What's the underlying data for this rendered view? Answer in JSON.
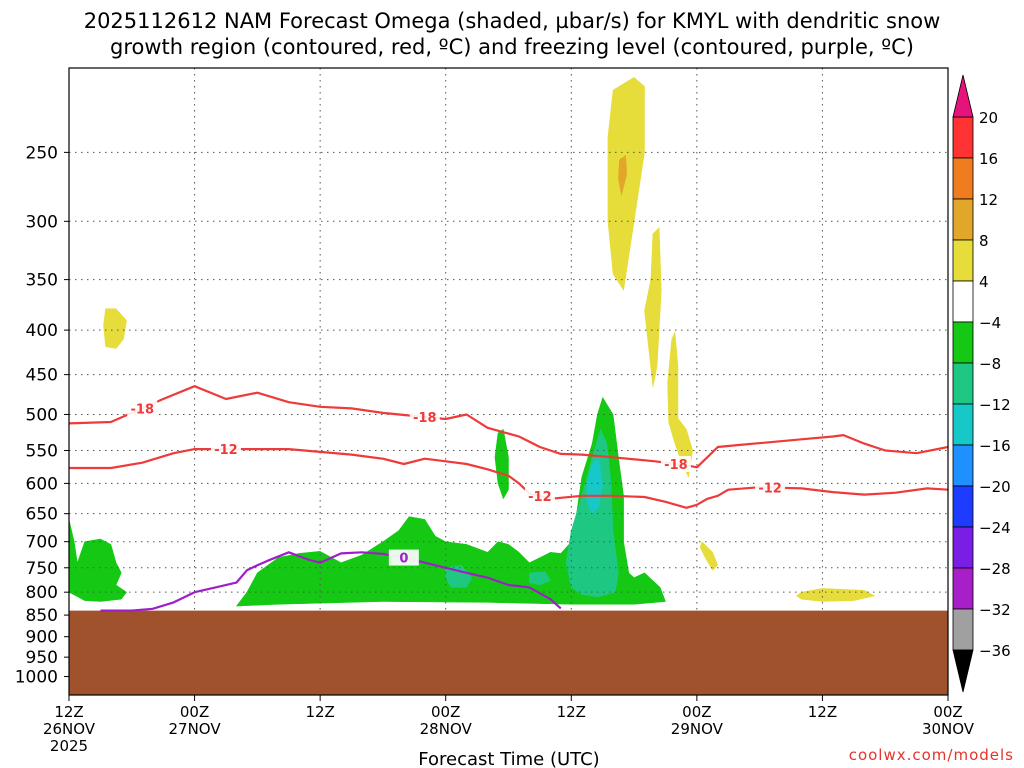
{
  "title_line1": "2025112612 NAM Forecast Omega (shaded, µbar/s) for KMYL with dendritic snow",
  "title_line2": "growth region (contoured, red, ºC) and freezing level (contoured, purple, ºC)",
  "credit": "coolwx.com/models",
  "colors": {
    "ground": "#a0522d",
    "red_contour": "#ef3a3a",
    "purple_contour": "#9e1fc8",
    "grid": "#888888"
  },
  "chart_data": {
    "type": "heatmap",
    "title": "2025112612 NAM Forecast Omega (shaded, µbar/s) for KMYL with dendritic snow growth region (contoured, red, ºC) and freezing level (contoured, purple, ºC)",
    "xlabel": "Forecast Time (UTC)",
    "ylabel": "",
    "x_ticks": [
      {
        "hour": 0,
        "line1": "12Z",
        "line2": "26NOV",
        "line3": "2025"
      },
      {
        "hour": 12,
        "line1": "00Z",
        "line2": "27NOV",
        "line3": ""
      },
      {
        "hour": 24,
        "line1": "12Z",
        "line2": "",
        "line3": ""
      },
      {
        "hour": 36,
        "line1": "00Z",
        "line2": "28NOV",
        "line3": ""
      },
      {
        "hour": 48,
        "line1": "12Z",
        "line2": "",
        "line3": ""
      },
      {
        "hour": 60,
        "line1": "00Z",
        "line2": "29NOV",
        "line3": ""
      },
      {
        "hour": 72,
        "line1": "12Z",
        "line2": "",
        "line3": ""
      },
      {
        "hour": 84,
        "line1": "00Z",
        "line2": "30NOV",
        "line3": ""
      }
    ],
    "y_axis": "pressure (hPa), log scale, inverted",
    "y_ticks": [
      250,
      300,
      350,
      400,
      450,
      500,
      550,
      600,
      650,
      700,
      750,
      800,
      850,
      900,
      950,
      1000
    ],
    "ylim": [
      200,
      1050
    ],
    "grid": true,
    "ground_top_hpa": 840,
    "colorbar": {
      "levels": [
        20,
        16,
        12,
        8,
        4,
        -4,
        -8,
        -12,
        -16,
        -20,
        -24,
        -28,
        -32,
        -36
      ],
      "colors": [
        "#ff3333",
        "#f07c20",
        "#e2a72a",
        "#e6dc3a",
        "#ffffff",
        "#14c814",
        "#1ec882",
        "#16c8c8",
        "#1e90ff",
        "#1e3cff",
        "#7a1ee6",
        "#a81ec8",
        "#a0a0a0"
      ],
      "top_arrow_color": "#e6147a",
      "bottom_arrow_color": "#000000"
    },
    "red_contours": [
      {
        "label": "-18",
        "points": [
          [
            0,
            512
          ],
          [
            4,
            510
          ],
          [
            6,
            498
          ],
          [
            9,
            480
          ],
          [
            12,
            464
          ],
          [
            15,
            480
          ],
          [
            18,
            472
          ],
          [
            21,
            484
          ],
          [
            24,
            490
          ],
          [
            27,
            492
          ],
          [
            30,
            498
          ],
          [
            33,
            502
          ],
          [
            36,
            506
          ],
          [
            38,
            500
          ],
          [
            40,
            518
          ],
          [
            43,
            530
          ],
          [
            45,
            545
          ],
          [
            47,
            555
          ],
          [
            49,
            556
          ],
          [
            52,
            560
          ],
          [
            56,
            566
          ],
          [
            58,
            570
          ],
          [
            59,
            572
          ],
          [
            60,
            575
          ],
          [
            61,
            560
          ],
          [
            62,
            545
          ],
          [
            64,
            542
          ],
          [
            67,
            538
          ],
          [
            70,
            534
          ],
          [
            73,
            530
          ],
          [
            74,
            528
          ],
          [
            76,
            540
          ],
          [
            78,
            550
          ],
          [
            81,
            554
          ],
          [
            84,
            545
          ]
        ]
      },
      {
        "label": "-12",
        "points": [
          [
            0,
            576
          ],
          [
            4,
            576
          ],
          [
            7,
            568
          ],
          [
            10,
            554
          ],
          [
            12,
            548
          ],
          [
            15,
            548
          ],
          [
            18,
            548
          ],
          [
            21,
            548
          ],
          [
            24,
            552
          ],
          [
            27,
            556
          ],
          [
            30,
            562
          ],
          [
            32,
            570
          ],
          [
            34,
            562
          ],
          [
            36,
            566
          ],
          [
            38,
            570
          ],
          [
            40,
            578
          ],
          [
            42,
            588
          ],
          [
            43,
            600
          ],
          [
            44,
            616
          ],
          [
            46,
            625
          ],
          [
            49,
            620
          ],
          [
            52,
            620
          ],
          [
            55,
            622
          ],
          [
            57,
            630
          ],
          [
            59,
            640
          ],
          [
            60,
            635
          ],
          [
            61,
            625
          ],
          [
            62,
            620
          ],
          [
            63,
            610
          ],
          [
            66,
            606
          ],
          [
            68,
            607
          ],
          [
            70,
            608
          ],
          [
            73,
            614
          ],
          [
            76,
            618
          ],
          [
            79,
            615
          ],
          [
            82,
            608
          ],
          [
            84,
            610
          ]
        ]
      }
    ],
    "purple_contour": {
      "label": "0",
      "points": [
        [
          3,
          840
        ],
        [
          6,
          840
        ],
        [
          8,
          836
        ],
        [
          10,
          822
        ],
        [
          12,
          800
        ],
        [
          14,
          790
        ],
        [
          16,
          780
        ],
        [
          17,
          755
        ],
        [
          18,
          745
        ],
        [
          19,
          736
        ],
        [
          21,
          720
        ],
        [
          23,
          735
        ],
        [
          24,
          740
        ],
        [
          26,
          722
        ],
        [
          28,
          720
        ],
        [
          30,
          723
        ],
        [
          32,
          730
        ],
        [
          34,
          740
        ],
        [
          36,
          750
        ],
        [
          38,
          760
        ],
        [
          40,
          770
        ],
        [
          42,
          785
        ],
        [
          44,
          790
        ],
        [
          46,
          815
        ],
        [
          47,
          835
        ]
      ]
    },
    "omega_regions": [
      {
        "color": "#e6dc3a",
        "label": "4 to 8",
        "points": [
          [
            3.5,
            378
          ],
          [
            4.5,
            378
          ],
          [
            5.5,
            390
          ],
          [
            5.2,
            410
          ],
          [
            4.5,
            420
          ],
          [
            3.5,
            418
          ],
          [
            3.3,
            395
          ]
        ]
      },
      {
        "color": "#e6dc3a",
        "label": "4 to 8",
        "points": [
          [
            52,
            212
          ],
          [
            54,
            205
          ],
          [
            55,
            210
          ],
          [
            55,
            250
          ],
          [
            54,
            300
          ],
          [
            53,
            360
          ],
          [
            52,
            345
          ],
          [
            51.5,
            300
          ],
          [
            51.5,
            240
          ]
        ]
      },
      {
        "color": "#e2a72a",
        "label": "8 to 12",
        "points": [
          [
            52.6,
            255
          ],
          [
            53.2,
            252
          ],
          [
            53.3,
            265
          ],
          [
            52.8,
            280
          ],
          [
            52.5,
            268
          ]
        ]
      },
      {
        "color": "#e6dc3a",
        "label": "4 to 8",
        "points": [
          [
            55.8,
            310
          ],
          [
            56.4,
            305
          ],
          [
            56.6,
            360
          ],
          [
            56.2,
            440
          ],
          [
            55.8,
            465
          ],
          [
            55.4,
            420
          ],
          [
            55,
            380
          ],
          [
            55.6,
            350
          ]
        ]
      },
      {
        "color": "#e6dc3a",
        "label": "4 to 8",
        "points": [
          [
            57.6,
            410
          ],
          [
            57.9,
            402
          ],
          [
            58.2,
            440
          ],
          [
            58.2,
            505
          ],
          [
            59,
            520
          ],
          [
            59.6,
            550
          ],
          [
            59.2,
            590
          ],
          [
            58.6,
            570
          ],
          [
            57.9,
            540
          ],
          [
            57.3,
            510
          ],
          [
            57.2,
            460
          ]
        ]
      },
      {
        "color": "#e6dc3a",
        "label": "4 to 8",
        "points": [
          [
            60.5,
            700
          ],
          [
            61.5,
            720
          ],
          [
            62,
            745
          ],
          [
            61.5,
            755
          ],
          [
            60.8,
            730
          ],
          [
            60.3,
            710
          ]
        ]
      },
      {
        "color": "#e6dc3a",
        "label": "4 to 8",
        "points": [
          [
            70,
            800
          ],
          [
            72,
            792
          ],
          [
            76,
            796
          ],
          [
            77,
            808
          ],
          [
            75,
            818
          ],
          [
            72,
            820
          ],
          [
            70,
            815
          ],
          [
            69.5,
            808
          ]
        ]
      },
      {
        "color": "#14c814",
        "label": "-4 to -8",
        "points": [
          [
            0,
            660
          ],
          [
            0.5,
            700
          ],
          [
            0.8,
            740
          ],
          [
            1.5,
            700
          ],
          [
            3,
            695
          ],
          [
            4,
            705
          ],
          [
            4.5,
            740
          ],
          [
            5,
            760
          ],
          [
            4.5,
            785
          ],
          [
            5.5,
            800
          ],
          [
            5,
            815
          ],
          [
            3,
            820
          ],
          [
            1.5,
            818
          ],
          [
            0,
            800
          ]
        ]
      },
      {
        "color": "#14c814",
        "label": "-4 to -8",
        "points": [
          [
            41,
            525
          ],
          [
            41.5,
            520
          ],
          [
            42,
            560
          ],
          [
            42,
            610
          ],
          [
            41.5,
            625
          ],
          [
            41,
            600
          ],
          [
            40.7,
            560
          ]
        ]
      },
      {
        "color": "#14c814",
        "label": "-4 to -8",
        "points": [
          [
            16,
            830
          ],
          [
            17,
            800
          ],
          [
            18,
            760
          ],
          [
            20,
            730
          ],
          [
            22,
            722
          ],
          [
            24,
            718
          ],
          [
            26,
            740
          ],
          [
            28,
            725
          ],
          [
            30,
            700
          ],
          [
            31.5,
            680
          ],
          [
            32.5,
            655
          ],
          [
            34,
            660
          ],
          [
            35,
            690
          ],
          [
            36,
            700
          ],
          [
            38,
            705
          ],
          [
            40,
            720
          ],
          [
            41,
            700
          ],
          [
            42,
            705
          ],
          [
            43,
            720
          ],
          [
            44,
            740
          ],
          [
            45,
            730
          ],
          [
            46,
            720
          ],
          [
            47,
            722
          ],
          [
            48,
            700
          ],
          [
            48.5,
            650
          ],
          [
            49,
            590
          ],
          [
            50,
            540
          ],
          [
            50.5,
            500
          ],
          [
            51,
            478
          ],
          [
            52,
            500
          ],
          [
            52.5,
            560
          ],
          [
            53,
            620
          ],
          [
            53,
            700
          ],
          [
            53.5,
            760
          ],
          [
            54,
            770
          ],
          [
            55,
            760
          ],
          [
            55.5,
            770
          ],
          [
            56.5,
            790
          ],
          [
            57,
            820
          ],
          [
            54,
            826
          ],
          [
            48,
            826
          ],
          [
            40,
            822
          ],
          [
            30,
            820
          ],
          [
            20,
            826
          ]
        ]
      },
      {
        "color": "#1ec882",
        "label": "-8 to -12",
        "points": [
          [
            47.5,
            740
          ],
          [
            48,
            680
          ],
          [
            49,
            620
          ],
          [
            50,
            560
          ],
          [
            50.8,
            520
          ],
          [
            51.4,
            540
          ],
          [
            51.8,
            600
          ],
          [
            52,
            680
          ],
          [
            52.5,
            760
          ],
          [
            52.2,
            800
          ],
          [
            50.5,
            810
          ],
          [
            49,
            805
          ],
          [
            48,
            790
          ]
        ]
      },
      {
        "color": "#16c8c8",
        "label": "-12 to -16",
        "points": [
          [
            49.5,
            600
          ],
          [
            50,
            570
          ],
          [
            50.6,
            560
          ],
          [
            51,
            600
          ],
          [
            50.6,
            640
          ],
          [
            50,
            650
          ],
          [
            49.5,
            630
          ]
        ]
      },
      {
        "color": "#1ec882",
        "label": "-8 to -12",
        "points": [
          [
            36,
            750
          ],
          [
            37.5,
            745
          ],
          [
            38.5,
            770
          ],
          [
            38,
            790
          ],
          [
            36.5,
            790
          ],
          [
            36,
            770
          ]
        ]
      },
      {
        "color": "#1ec882",
        "label": "-8 to -12",
        "points": [
          [
            44,
            760
          ],
          [
            45.5,
            758
          ],
          [
            46,
            775
          ],
          [
            45,
            785
          ],
          [
            44,
            780
          ]
        ]
      }
    ]
  }
}
